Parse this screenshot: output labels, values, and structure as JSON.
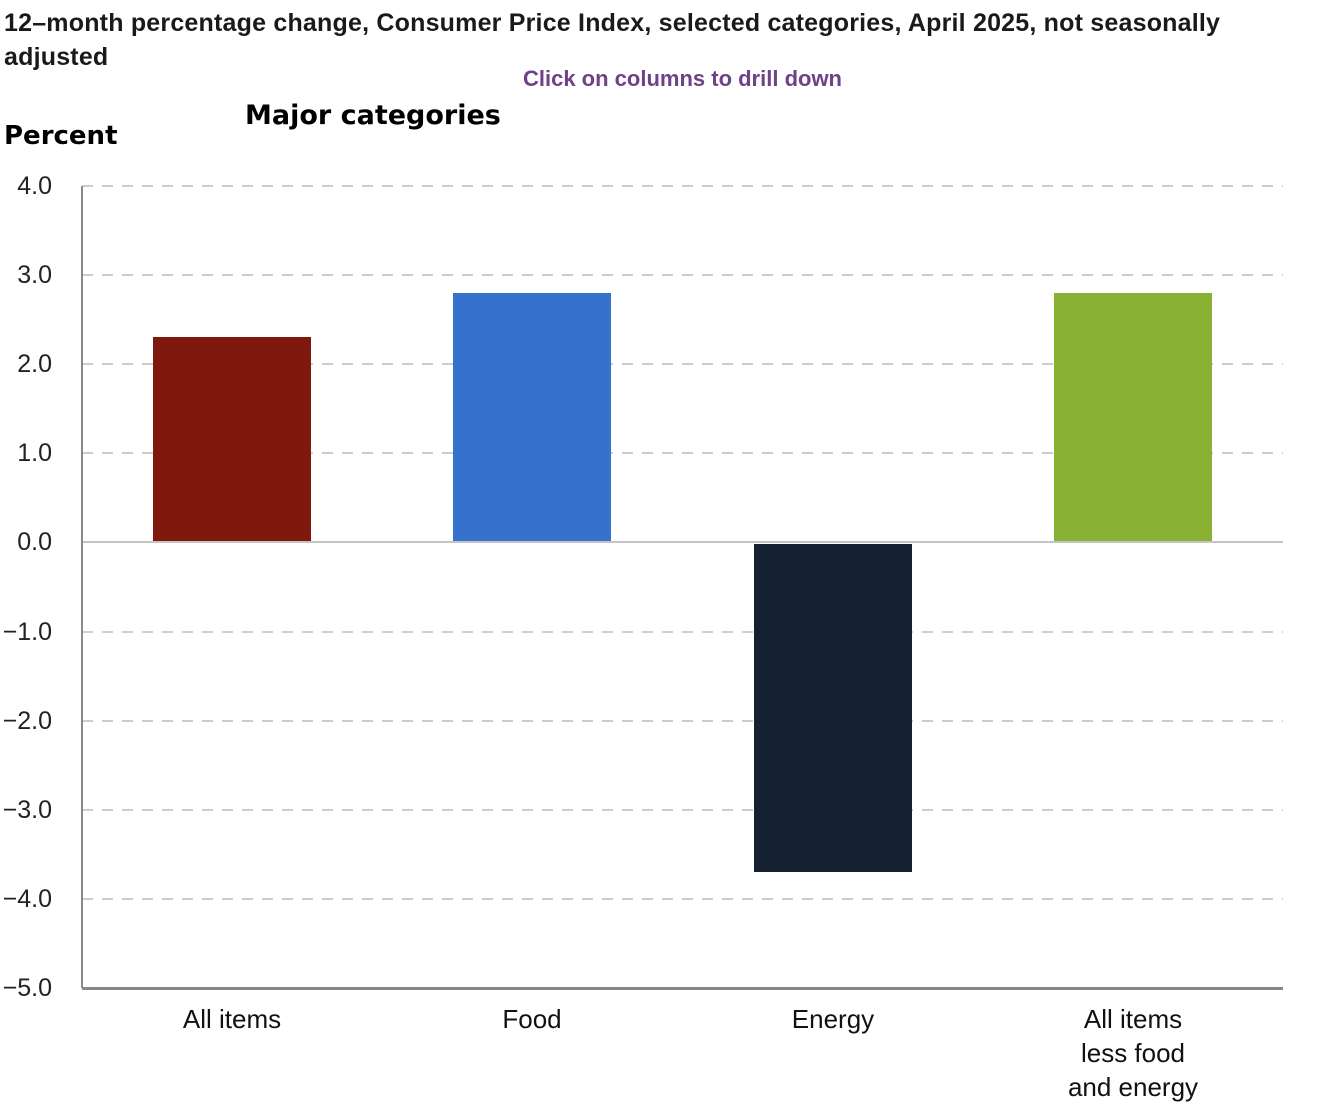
{
  "header": {
    "title": "12–month percentage change, Consumer Price Index, selected categories, April 2025, not seasonally adjusted",
    "subtitle": "Click on columns to drill down",
    "axis_title": "Major categories",
    "unit_label": "Percent"
  },
  "colors": {
    "subtitle_text": "#6d4288",
    "gridline": "#cdcdcd",
    "zero_line": "#c4c4c4",
    "axis_line": "#8a8a8a"
  },
  "chart_data": {
    "type": "bar",
    "title": "Major categories",
    "subtitle": "Click on columns to drill down",
    "ylabel": "Percent",
    "xlabel": "",
    "categories": [
      "All items",
      "Food",
      "Energy",
      "All items\nless food\nand energy"
    ],
    "values": [
      2.3,
      2.8,
      -3.7,
      2.8
    ],
    "bar_colors": [
      "#7f190d",
      "#3672cd",
      "#152031",
      "#89b134"
    ],
    "ylim": [
      -5,
      4
    ],
    "ytick_step": 1,
    "ytick_labels": [
      "4.0",
      "3.0",
      "2.0",
      "1.0",
      "0.0",
      "−1.0",
      "−2.0",
      "−3.0",
      "−4.0",
      "−5.0"
    ],
    "grid": "horizontal-dashed",
    "legend": "none"
  }
}
